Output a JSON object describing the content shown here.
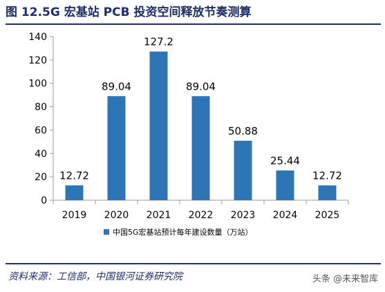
{
  "title": "图 12.5G 宏基站 PCB 投资空间释放节奏测算",
  "source": "资料来源：工信部，中国银河证券研究院",
  "watermark": "头条 @未来智库",
  "colors": {
    "bar": "#2e75b6",
    "axis": "#999999",
    "title": "#1d2e6b"
  },
  "chart_data": {
    "type": "bar",
    "categories": [
      "2019",
      "2020",
      "2021",
      "2022",
      "2023",
      "2024",
      "2025"
    ],
    "series": [
      {
        "name": "中国5G宏基站预计每年建设数量（万站）",
        "values": [
          12.72,
          89.04,
          127.2,
          89.04,
          50.88,
          25.44,
          12.72
        ],
        "labels": [
          "12.72",
          "89.04",
          "127.2",
          "89.04",
          "50.88",
          "25.44",
          "12.72"
        ]
      }
    ],
    "ylim": [
      0,
      140
    ],
    "yticks": [
      0,
      20,
      40,
      60,
      80,
      100,
      120,
      140
    ],
    "grid": false,
    "legend_position": "bottom"
  }
}
